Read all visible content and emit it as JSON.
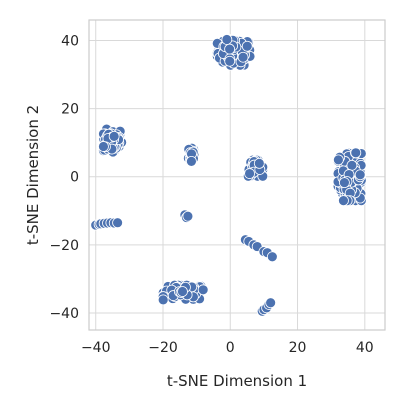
{
  "chart_data": {
    "type": "scatter",
    "title": "",
    "xlabel": "t-SNE Dimension 1",
    "ylabel": "t-SNE Dimension 2",
    "xlim": [
      -42,
      46
    ],
    "ylim": [
      -45,
      46
    ],
    "xticks": [
      -40,
      -20,
      0,
      20,
      40
    ],
    "yticks": [
      -40,
      -20,
      0,
      20,
      40
    ],
    "grid": true,
    "legend": "none",
    "color": "#4c72b0",
    "clusters": [
      {
        "center": [
          1,
          36.5
        ],
        "spread": [
          4.5,
          3.5
        ],
        "count": 95
      },
      {
        "center": [
          -35,
          10.5
        ],
        "spread": [
          2.5,
          3.2
        ],
        "count": 65
      },
      {
        "center": [
          35.5,
          0
        ],
        "spread": [
          3.2,
          6.5
        ],
        "count": 130
      },
      {
        "center": [
          7.5,
          2.5
        ],
        "spread": [
          2.0,
          2.2
        ],
        "count": 45
      },
      {
        "center": [
          -11.5,
          6.5
        ],
        "spread": [
          1.0,
          3.0
        ],
        "count": 22
      },
      {
        "center": [
          -14,
          -34
        ],
        "spread": [
          5.5,
          2.0
        ],
        "count": 95
      }
    ],
    "points": [
      [
        -40,
        -14.2
      ],
      [
        -39,
        -14
      ],
      [
        -38.5,
        -13.8
      ],
      [
        -37.5,
        -13.7
      ],
      [
        -36.5,
        -13.6
      ],
      [
        -35.5,
        -13.5
      ],
      [
        -34.5,
        -13.6
      ],
      [
        -33.5,
        -13.5
      ],
      [
        -13.5,
        -11.2
      ],
      [
        -13,
        -12
      ],
      [
        -12.6,
        -11.6
      ],
      [
        4.5,
        -18.5
      ],
      [
        5.5,
        -19
      ],
      [
        7,
        -20
      ],
      [
        8,
        -20.5
      ],
      [
        10,
        -22
      ],
      [
        11,
        -22.3
      ],
      [
        12.5,
        -23.5
      ],
      [
        9.5,
        -39.5
      ],
      [
        10,
        -39
      ],
      [
        10.8,
        -38.5
      ],
      [
        11.5,
        -37.5
      ],
      [
        12,
        -37
      ]
    ]
  }
}
